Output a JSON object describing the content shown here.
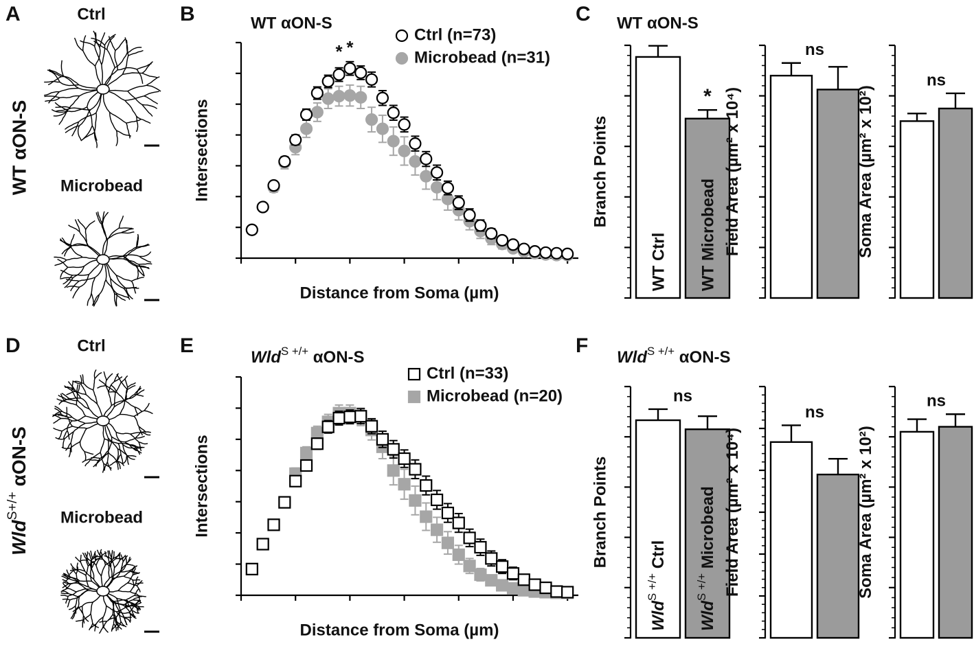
{
  "cell_panels": [
    {
      "label": "A",
      "side_title": "WT αON-S",
      "top_label": "Ctrl",
      "bottom_label": "Microbead"
    },
    {
      "label": "D",
      "side_title": {
        "italic": "Wld",
        "sup": "S+/+",
        "text": " αON-S"
      },
      "top_label": "Ctrl",
      "bottom_label": "Microbead"
    }
  ],
  "chart_data": [
    {
      "type": "scatter",
      "panel_label": "B",
      "title": "WT αON-S",
      "x_label": "Distance from Soma (µm)",
      "y_label": "Intersections",
      "x": [
        10,
        20,
        30,
        40,
        50,
        60,
        70,
        80,
        90,
        100,
        110,
        120,
        130,
        140,
        150,
        160,
        170,
        180,
        190,
        200,
        210,
        220,
        230,
        240,
        250,
        260,
        270,
        280,
        290,
        300
      ],
      "xlim": [
        0,
        310
      ],
      "xticks": [
        0,
        50,
        100,
        150,
        200,
        250,
        300
      ],
      "ylim": [
        0,
        35
      ],
      "yticks": [
        0,
        5,
        10,
        15,
        20,
        25,
        30,
        35
      ],
      "legend": "upper right",
      "series": [
        {
          "name": "Ctrl (n=73)",
          "marker": "circle",
          "color": "#ffffff",
          "edge_color": "#000000",
          "values": [
            4.6,
            8.3,
            11.8,
            15.7,
            19.2,
            23.3,
            26.8,
            28.7,
            29.8,
            30.8,
            30.1,
            29,
            26,
            23.6,
            21.7,
            18.6,
            16.1,
            13.9,
            11.4,
            9,
            7,
            5.3,
            4,
            2.9,
            2.2,
            1.5,
            1.1,
            0.9,
            0.8,
            0.7
          ],
          "errors": [
            0.4,
            0.5,
            0.6,
            0.7,
            0.8,
            0.9,
            1,
            1,
            1.1,
            1.1,
            1.1,
            1.2,
            1.2,
            1.2,
            1.2,
            1.2,
            1.2,
            1.2,
            1.1,
            1.1,
            1,
            0.9,
            0.8,
            0.7,
            0.6,
            0.5,
            0.4,
            0.4,
            0.3,
            0.3
          ]
        },
        {
          "name": "Microbead (n=31)",
          "marker": "circle",
          "color": "#a6a6a6",
          "edge_color": "#a6a6a6",
          "values": [
            4.6,
            8.3,
            11.5,
            15.5,
            18,
            21,
            23.7,
            25.9,
            26.3,
            26.4,
            26.1,
            22.5,
            21,
            19,
            17.4,
            15.7,
            13.3,
            11.5,
            9.6,
            7.8,
            6,
            4.4,
            3.2,
            2.3,
            1.6,
            1.1,
            0.8,
            0.6,
            0.5,
            0.5
          ],
          "errors": [
            0.5,
            0.6,
            0.8,
            1,
            1.2,
            1.4,
            1.5,
            1.6,
            1.6,
            1.7,
            1.8,
            2,
            2.2,
            2.3,
            2.3,
            2.2,
            2.1,
            2,
            1.8,
            1.6,
            1.4,
            1.2,
            1,
            0.8,
            0.6,
            0.5,
            0.4,
            0.3,
            0.3,
            0.3
          ]
        }
      ],
      "annotations": [
        {
          "text": "*",
          "x": 90,
          "y": 33.3
        },
        {
          "text": "*",
          "x": 100,
          "y": 34
        }
      ]
    },
    {
      "type": "bar",
      "panel_label": "C",
      "title": "WT αON-S",
      "y_label": "Branch Points",
      "categories": [
        "WT Ctrl",
        "WT Microbead"
      ],
      "values": [
        47.7,
        35.5
      ],
      "errors": [
        2.2,
        1.7
      ],
      "colors": [
        "#ffffff",
        "#9b9b9b"
      ],
      "ylim": [
        0,
        50
      ],
      "yticks": [
        0,
        10,
        20,
        30,
        40,
        50
      ],
      "annotations": [
        {
          "text": "*",
          "index": 1
        }
      ]
    },
    {
      "type": "bar",
      "y_label": {
        "text": "Field Area (µm² x 10⁴)"
      },
      "values": [
        8.8,
        8.25
      ],
      "errors": [
        0.5,
        0.9
      ],
      "colors": [
        "#ffffff",
        "#9b9b9b"
      ],
      "ylim": [
        0,
        10
      ],
      "yticks": [
        0,
        2,
        4,
        6,
        8,
        10
      ],
      "annotations": [
        {
          "text": "ns"
        }
      ]
    },
    {
      "type": "bar",
      "y_label": {
        "text": "Soma Area (µm² x 10²)"
      },
      "values": [
        3.5,
        3.75
      ],
      "errors": [
        0.15,
        0.3
      ],
      "colors": [
        "#ffffff",
        "#9b9b9b"
      ],
      "ylim": [
        0,
        5
      ],
      "yticks": [
        0,
        1,
        2,
        3,
        4,
        5
      ],
      "annotations": [
        {
          "text": "ns"
        }
      ]
    },
    {
      "type": "scatter",
      "panel_label": "E",
      "title": {
        "italic": "Wld",
        "sup": "S +/+",
        "text": " αON-S"
      },
      "x_label": "Distance from Soma (µm)",
      "y_label": "Intersections",
      "x": [
        10,
        20,
        30,
        40,
        50,
        60,
        70,
        80,
        90,
        100,
        110,
        120,
        130,
        140,
        150,
        160,
        170,
        180,
        190,
        200,
        210,
        220,
        230,
        240,
        250,
        260,
        270,
        280,
        290,
        300
      ],
      "xlim": [
        0,
        310
      ],
      "xticks": [
        0,
        50,
        100,
        150,
        200,
        250,
        300
      ],
      "ylim": [
        0,
        35
      ],
      "yticks": [
        0,
        5,
        10,
        15,
        20,
        25,
        30,
        35
      ],
      "legend": "upper right",
      "series": [
        {
          "name": "Ctrl (n=33)",
          "marker": "square",
          "color": "#ffffff",
          "edge_color": "#000000",
          "values": [
            4.2,
            8.2,
            11.3,
            14.9,
            18.3,
            20.8,
            24.3,
            27,
            28.4,
            28.6,
            28.7,
            27.1,
            25,
            23.4,
            21.9,
            20.2,
            17.6,
            15.3,
            13.2,
            11.6,
            9.2,
            7.7,
            5.9,
            4.6,
            3.5,
            2.5,
            1.7,
            1.2,
            0.6,
            0.5
          ],
          "errors": [
            0.3,
            0.4,
            0.5,
            0.6,
            0.7,
            0.8,
            0.9,
            1,
            1.1,
            1.1,
            1.2,
            1.2,
            1.3,
            1.4,
            1.4,
            1.5,
            1.5,
            1.5,
            1.5,
            1.5,
            1.4,
            1.3,
            1.2,
            1.1,
            1,
            0.8,
            0.6,
            0.5,
            0.4,
            0.3
          ]
        },
        {
          "name": "Microbead (n=20)",
          "marker": "square",
          "color": "#a6a6a6",
          "edge_color": "#a6a6a6",
          "values": [
            4.2,
            8.2,
            11.3,
            14.9,
            19.5,
            22.8,
            26,
            27.8,
            29.2,
            29.2,
            28.6,
            26.5,
            23.8,
            20,
            17.8,
            15.2,
            12.6,
            10.5,
            8.4,
            6.5,
            4.7,
            3.3,
            2.4,
            1.6,
            1.1,
            0.8,
            0.6,
            0.5,
            0.4,
            0.4
          ],
          "errors": [
            0.4,
            0.5,
            0.6,
            0.7,
            0.9,
            1,
            1.1,
            1.2,
            1.3,
            1.3,
            1.4,
            1.6,
            1.9,
            2.3,
            2.4,
            2.3,
            2.2,
            2,
            1.8,
            1.5,
            1.2,
            1,
            0.8,
            0.6,
            0.5,
            0.4,
            0.3,
            0.3,
            0.2,
            0.2
          ]
        }
      ]
    },
    {
      "type": "bar",
      "panel_label": "F",
      "title": {
        "italic": "Wld",
        "sup": "S +/+",
        "text": " αON-S"
      },
      "y_label": "Branch Points",
      "categories": [
        {
          "italic": "Wld",
          "sup": "S +/+",
          "text": " Ctrl"
        },
        {
          "italic": "Wld",
          "sup": "S +/+",
          "text": " Microbead"
        }
      ],
      "values": [
        43.3,
        41.5
      ],
      "errors": [
        2.2,
        2.6
      ],
      "colors": [
        "#ffffff",
        "#9b9b9b"
      ],
      "ylim": [
        0,
        50
      ],
      "yticks": [
        0,
        10,
        20,
        30,
        40,
        50
      ],
      "annotations": [
        {
          "text": "ns"
        }
      ]
    },
    {
      "type": "bar",
      "y_label": {
        "text": "Field Area (µm² x 10⁴)"
      },
      "values": [
        9.35,
        7.8
      ],
      "errors": [
        0.8,
        0.75
      ],
      "colors": [
        "#ffffff",
        "#9b9b9b"
      ],
      "ylim": [
        0,
        12
      ],
      "yticks": [
        0,
        2,
        4,
        6,
        8,
        10,
        12
      ],
      "annotations": [
        {
          "text": "ns"
        }
      ]
    },
    {
      "type": "bar",
      "y_label": {
        "text": "Soma Area (µm² x 10²)"
      },
      "values": [
        4.1,
        4.2
      ],
      "errors": [
        0.25,
        0.25
      ],
      "colors": [
        "#ffffff",
        "#9b9b9b"
      ],
      "ylim": [
        0,
        5
      ],
      "yticks": [
        0,
        1,
        2,
        3,
        4,
        5
      ],
      "annotations": [
        {
          "text": "ns"
        }
      ]
    }
  ]
}
